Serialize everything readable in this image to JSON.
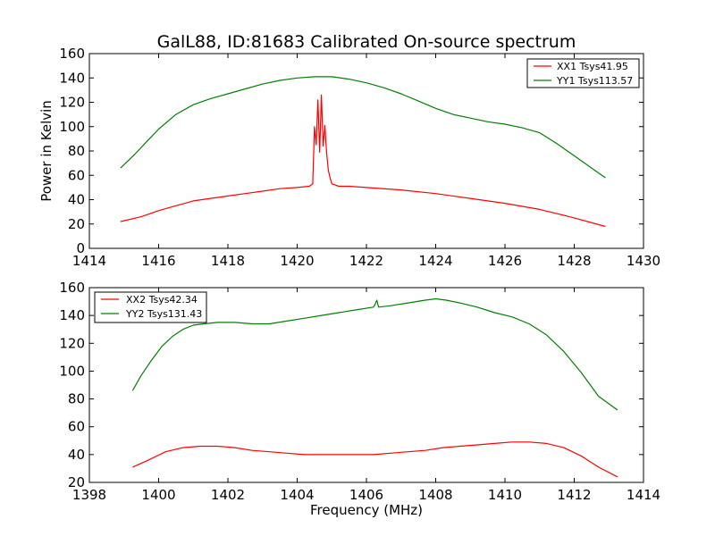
{
  "figure": {
    "title": "GalL88, ID:81683 Calibrated On-source spectrum"
  },
  "colors": {
    "red": "#ff0000",
    "green": "#008000",
    "axis": "#000000"
  },
  "chart_data": [
    {
      "type": "line",
      "title": "GalL88, ID:81683 Calibrated On-source spectrum",
      "xlabel": "",
      "ylabel": "Power in Kelvin",
      "xlim": [
        1414,
        1430
      ],
      "ylim": [
        0,
        160
      ],
      "xticks": [
        1414,
        1416,
        1418,
        1420,
        1422,
        1424,
        1426,
        1428,
        1430
      ],
      "yticks": [
        0,
        20,
        40,
        60,
        80,
        100,
        120,
        140,
        160
      ],
      "legend": "top-right",
      "series": [
        {
          "name": "XX1 Tsys41.95",
          "color": "#ff0000",
          "x": [
            1414.9,
            1415.5,
            1416,
            1416.5,
            1417,
            1417.5,
            1418,
            1418.5,
            1419,
            1419.5,
            1420,
            1420.35,
            1420.45,
            1420.5,
            1420.55,
            1420.6,
            1420.65,
            1420.7,
            1420.75,
            1420.8,
            1420.85,
            1420.9,
            1420.95,
            1421.0,
            1421.1,
            1421.2,
            1421.5,
            1422,
            1423,
            1424,
            1425,
            1426,
            1427,
            1428,
            1428.9
          ],
          "y": [
            22,
            26,
            31,
            35,
            39,
            41,
            43,
            45,
            47,
            49,
            50,
            51,
            53,
            100,
            85,
            122,
            79,
            126,
            84,
            101,
            79,
            64,
            58,
            53,
            52,
            51,
            51,
            50,
            48,
            45,
            41,
            37,
            32,
            25,
            18
          ]
        },
        {
          "name": "YY1 Tsys113.57",
          "color": "#008000",
          "x": [
            1414.9,
            1415.3,
            1415.7,
            1416,
            1416.5,
            1417,
            1417.5,
            1418,
            1418.5,
            1419,
            1419.5,
            1420,
            1420.5,
            1421,
            1421.5,
            1422,
            1422.5,
            1423,
            1423.5,
            1424,
            1424.5,
            1425,
            1425.5,
            1426,
            1426.5,
            1427,
            1427.5,
            1428,
            1428.5,
            1428.9
          ],
          "y": [
            66,
            77,
            89,
            98,
            110,
            118,
            123,
            127,
            131,
            135,
            138,
            140,
            141,
            141,
            139,
            136,
            132,
            127,
            121,
            115,
            110,
            107,
            104,
            102,
            99,
            95,
            86,
            76,
            66,
            58
          ]
        }
      ]
    },
    {
      "type": "line",
      "title": "",
      "xlabel": "Frequency (MHz)",
      "ylabel": "",
      "xlim": [
        1398,
        1414
      ],
      "ylim": [
        20,
        160
      ],
      "xticks": [
        1398,
        1400,
        1402,
        1404,
        1406,
        1408,
        1410,
        1412,
        1414
      ],
      "yticks": [
        20,
        40,
        60,
        80,
        100,
        120,
        140,
        160
      ],
      "legend": "top-left",
      "series": [
        {
          "name": "XX2 Tsys42.34",
          "color": "#ff0000",
          "x": [
            1399.25,
            1399.7,
            1400.2,
            1400.7,
            1401.2,
            1401.7,
            1402.2,
            1402.7,
            1403.2,
            1403.7,
            1404.2,
            1404.7,
            1405.2,
            1405.7,
            1406.2,
            1406.7,
            1407.2,
            1407.7,
            1408.2,
            1408.7,
            1409.2,
            1409.7,
            1410.2,
            1410.7,
            1411.2,
            1411.7,
            1412.2,
            1412.7,
            1413.25
          ],
          "y": [
            31,
            36,
            42,
            45,
            46,
            46,
            45,
            43,
            42,
            41,
            40,
            40,
            40,
            40,
            40,
            41,
            42,
            43,
            45,
            46,
            47,
            48,
            49,
            49,
            48,
            45,
            39,
            31,
            24
          ]
        },
        {
          "name": "YY2 Tsys131.43",
          "color": "#008000",
          "x": [
            1399.25,
            1399.5,
            1399.8,
            1400.1,
            1400.4,
            1400.7,
            1401.0,
            1401.3,
            1401.7,
            1402.2,
            1402.7,
            1403.2,
            1403.7,
            1404.2,
            1404.7,
            1405.2,
            1405.7,
            1406.2,
            1406.25,
            1406.3,
            1406.35,
            1406.7,
            1407.2,
            1407.7,
            1408.0,
            1408.3,
            1408.7,
            1409.2,
            1409.7,
            1410.2,
            1410.7,
            1411.2,
            1411.7,
            1412.2,
            1412.7,
            1413.25
          ],
          "y": [
            86,
            97,
            108,
            118,
            125,
            130,
            133,
            134,
            135,
            135,
            134,
            134,
            136,
            138,
            140,
            142,
            144,
            146,
            148,
            151,
            146,
            147,
            149,
            151,
            152,
            151,
            149,
            146,
            142,
            139,
            134,
            126,
            114,
            99,
            82,
            72
          ]
        }
      ]
    }
  ]
}
